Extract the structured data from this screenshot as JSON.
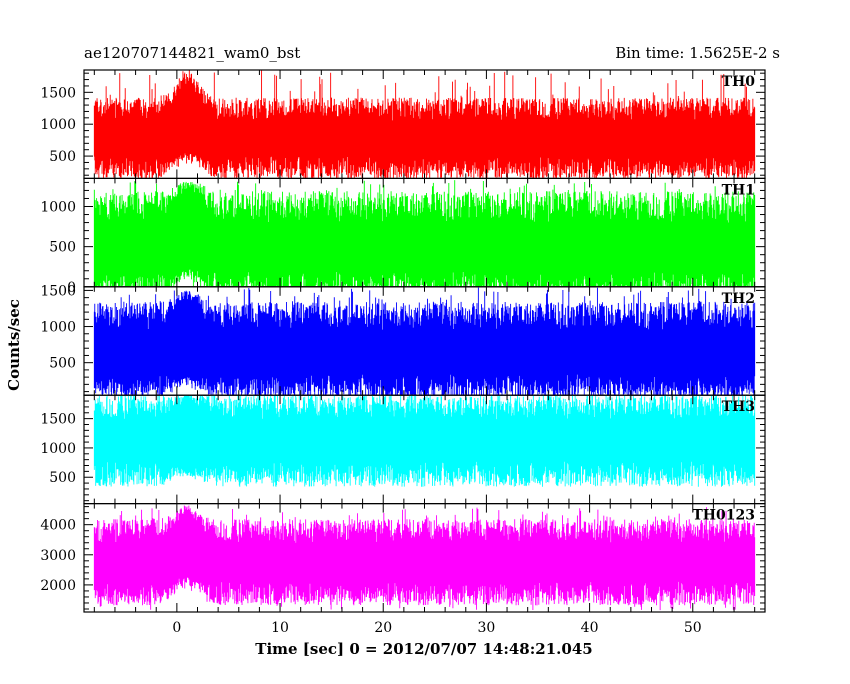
{
  "header": {
    "left_title": "ae120707144821_wam0_bst",
    "right_title": "Bin time: 1.5625E-2 s"
  },
  "chart_data": {
    "type": "line",
    "title": "ae120707144821_wam0_bst",
    "subtitle": "Bin time: 1.5625E-2 s",
    "xlabel": "Time [sec] 0 = 2012/07/07 14:48:21.045",
    "ylabel": "Counts/sec",
    "xlim": [
      -9,
      57
    ],
    "x_range": [
      -8.0,
      56.0
    ],
    "bin_time": 0.015625,
    "x_ticks": [
      0,
      10,
      20,
      30,
      40,
      50
    ],
    "grid": false,
    "legend": "none",
    "series": [
      {
        "name": "TH0",
        "color": "#ff0000",
        "ylim": [
          150,
          1850
        ],
        "y_ticks": [
          500,
          1000,
          1500
        ],
        "baseline": 800,
        "upper_typ": 1200,
        "upper_peak": 1850,
        "lower_typ": 350,
        "lower_min": 160,
        "burst_peak_x": 1.0,
        "burst_upper": 1850,
        "burst_lower": 560
      },
      {
        "name": "TH1",
        "color": "#00ff00",
        "ylim": [
          0,
          1350
        ],
        "y_ticks": [
          0,
          500,
          1000
        ],
        "baseline": 500,
        "upper_typ": 950,
        "upper_peak": 1330,
        "lower_typ": 50,
        "lower_min": 0,
        "burst_peak_x": 1.0,
        "burst_upper": 1330,
        "burst_lower": 230
      },
      {
        "name": "TH2",
        "color": "#0000ff",
        "ylim": [
          50,
          1550
        ],
        "y_ticks": [
          500,
          1000,
          1500
        ],
        "baseline": 650,
        "upper_typ": 1100,
        "upper_peak": 1550,
        "lower_typ": 200,
        "lower_min": 60,
        "burst_peak_x": 1.0,
        "burst_upper": 1500,
        "burst_lower": 300
      },
      {
        "name": "TH3",
        "color": "#00ffff",
        "ylim": [
          50,
          1900
        ],
        "y_ticks": [
          500,
          1000,
          1500
        ],
        "baseline": 1150,
        "upper_typ": 1650,
        "upper_peak": 1900,
        "lower_typ": 600,
        "lower_min": 400,
        "burst_peak_x": 1.0,
        "burst_upper": 1900,
        "burst_lower": 600
      },
      {
        "name": "TH0123",
        "color": "#ff00ff",
        "ylim": [
          1100,
          4700
        ],
        "y_ticks": [
          2000,
          3000,
          4000
        ],
        "baseline": 2800,
        "upper_typ": 3700,
        "upper_peak": 4600,
        "lower_typ": 1800,
        "lower_min": 1150,
        "burst_peak_x": 1.0,
        "burst_upper": 4650,
        "burst_lower": 2300
      }
    ]
  }
}
